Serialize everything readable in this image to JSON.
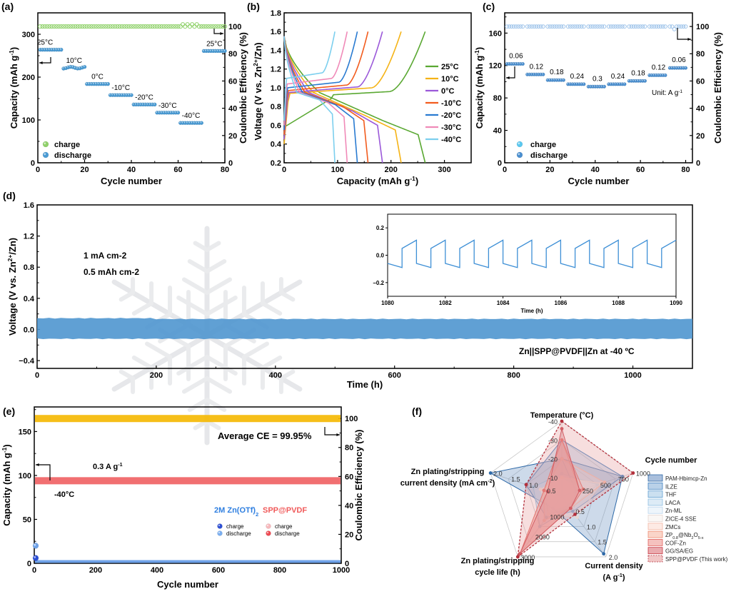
{
  "chart_data": [
    {
      "panel": "(a)",
      "type": "scatter",
      "xlabel": "Cycle number",
      "ylabel": "Capacity (mAh g-1)",
      "y2label": "Coulombic Efficiency (%)",
      "xlim": [
        0,
        80
      ],
      "ylim": [
        0,
        350
      ],
      "y2lim": [
        0,
        110
      ],
      "xticks": [
        0,
        20,
        40,
        60,
        80
      ],
      "yticks": [
        0,
        100,
        200,
        300
      ],
      "y2ticks": [
        0,
        20,
        40,
        60,
        80,
        100
      ],
      "legend": [
        "charge",
        "discharge"
      ],
      "legend_position": "bottom-left",
      "colors": {
        "charge": "#8fd16a",
        "discharge": "#4a9bd4"
      },
      "segments": [
        {
          "label": "25°C",
          "x": [
            1,
            10
          ],
          "capacity": 264
        },
        {
          "label": "10°C",
          "x": [
            11,
            20
          ],
          "capacity": 222
        },
        {
          "label": "0°C",
          "x": [
            21,
            30
          ],
          "capacity": 184
        },
        {
          "label": "-10°C",
          "x": [
            31,
            40
          ],
          "capacity": 158
        },
        {
          "label": "-20°C",
          "x": [
            41,
            50
          ],
          "capacity": 136
        },
        {
          "label": "-30°C",
          "x": [
            51,
            60
          ],
          "capacity": 117
        },
        {
          "label": "-40°C",
          "x": [
            61,
            70
          ],
          "capacity": 93
        },
        {
          "label": "25°C",
          "x": [
            71,
            80
          ],
          "capacity": 261
        }
      ],
      "ce_value": 100
    },
    {
      "panel": "(b)",
      "type": "line",
      "xlabel": "Capacity (mAh g-1)",
      "ylabel": "Voltage (V vs. Zn2+/Zn)",
      "xlim": [
        0,
        350
      ],
      "ylim": [
        0.2,
        1.8
      ],
      "xticks": [
        0,
        100,
        200,
        300
      ],
      "yticks": [
        0.2,
        0.4,
        0.6,
        0.8,
        1.0,
        1.2,
        1.4,
        1.6
      ],
      "legend_position": "right",
      "series": [
        {
          "name": "25°C",
          "color": "#5aa832",
          "max_capacity": 264,
          "charge_plateau": 0.93,
          "discharge_plateau": 0.55
        },
        {
          "name": "10°C",
          "color": "#f5b316",
          "max_capacity": 219,
          "charge_plateau": 0.97,
          "discharge_plateau": 0.6
        },
        {
          "name": "0°C",
          "color": "#9b59d9",
          "max_capacity": 184,
          "charge_plateau": 0.98,
          "discharge_plateau": 0.65
        },
        {
          "name": "-10°C",
          "color": "#f25c1e",
          "max_capacity": 157,
          "charge_plateau": 1.0,
          "discharge_plateau": 0.7
        },
        {
          "name": "-20°C",
          "color": "#2a7bd1",
          "max_capacity": 137,
          "charge_plateau": 1.03,
          "discharge_plateau": 0.72
        },
        {
          "name": "-30°C",
          "color": "#f08ab8",
          "max_capacity": 118,
          "charge_plateau": 1.07,
          "discharge_plateau": 0.74
        },
        {
          "name": "-40°C",
          "color": "#7ccfee",
          "max_capacity": 95,
          "charge_plateau": 1.13,
          "discharge_plateau": 0.77
        }
      ]
    },
    {
      "panel": "(c)",
      "type": "scatter",
      "xlabel": "Cycle number",
      "ylabel": "Capacity (mAh g-1)",
      "y2label": "Coulombic Efficiency (%)",
      "xlim": [
        0,
        83
      ],
      "ylim": [
        0,
        185
      ],
      "y2lim": [
        0,
        110
      ],
      "xticks": [
        0,
        20,
        40,
        60,
        80
      ],
      "yticks": [
        0,
        40,
        80,
        120,
        160
      ],
      "y2ticks": [
        0,
        20,
        40,
        60,
        80,
        100
      ],
      "legend": [
        "charge",
        "discharge"
      ],
      "legend_position": "bottom-left",
      "annotation": "Unit: A g-1",
      "colors": {
        "charge": "#5ac8f0",
        "discharge": "#4a8fd0"
      },
      "segments": [
        {
          "label": "0.06",
          "x": [
            1,
            9
          ],
          "capacity": 122
        },
        {
          "label": "0.12",
          "x": [
            10,
            18
          ],
          "capacity": 109
        },
        {
          "label": "0.18",
          "x": [
            19,
            27
          ],
          "capacity": 102
        },
        {
          "label": "0.24",
          "x": [
            28,
            36
          ],
          "capacity": 97
        },
        {
          "label": "0.3",
          "x": [
            37,
            45
          ],
          "capacity": 94
        },
        {
          "label": "0.24",
          "x": [
            46,
            54
          ],
          "capacity": 97
        },
        {
          "label": "0.18",
          "x": [
            55,
            63
          ],
          "capacity": 101
        },
        {
          "label": "0.12",
          "x": [
            64,
            72
          ],
          "capacity": 108
        },
        {
          "label": "0.06",
          "x": [
            73,
            81
          ],
          "capacity": 117
        }
      ],
      "ce_value": 100
    },
    {
      "panel": "(d)",
      "type": "line",
      "xlabel": "Time (h)",
      "ylabel": "Voltage (V vs. Zn2+/Zn)",
      "xlim": [
        0,
        1100
      ],
      "ylim": [
        -0.5,
        1.6
      ],
      "xticks": [
        0,
        200,
        400,
        600,
        800,
        1000
      ],
      "yticks": [
        -0.4,
        0.0,
        0.4,
        0.8,
        1.2,
        1.6
      ],
      "band": {
        "min": -0.12,
        "max": 0.14,
        "color": "#4f96cf"
      },
      "annotations": [
        "1 mA cm-2",
        "0.5 mAh cm-2",
        "Zn||SPP@PVDF||Zn at -40 ºC"
      ],
      "inset": {
        "xlabel": "Time (h)",
        "xlim": [
          1080,
          1090
        ],
        "ylim": [
          -0.3,
          0.3
        ],
        "xticks": [
          1080,
          1082,
          1084,
          1086,
          1088,
          1090
        ],
        "yticks": [
          -0.2,
          0.0,
          0.2
        ],
        "period_h": 1,
        "upper": [
          0.05,
          0.11
        ],
        "lower": [
          -0.06,
          -0.09
        ]
      }
    },
    {
      "panel": "(e)",
      "type": "scatter",
      "xlabel": "Cycle number",
      "ylabel": "Capacity (mAh g-1)",
      "y2label": "Coulombic Efficiency (%)",
      "xlim": [
        0,
        1000
      ],
      "ylim": [
        0,
        178
      ],
      "y2lim": [
        0,
        108
      ],
      "xticks": [
        0,
        200,
        400,
        600,
        800,
        1000
      ],
      "yticks": [
        0,
        50,
        100,
        150
      ],
      "y2ticks": [
        0,
        20,
        40,
        60,
        80,
        100
      ],
      "annotations": [
        "Average CE = 99.95%",
        "0.3 A g-1",
        "-40°C"
      ],
      "series": [
        {
          "name": "SPP@PVDF CE",
          "value": 100,
          "color": "#f5b800"
        },
        {
          "name": "SPP@PVDF discharge",
          "value": 94,
          "color": "#ef5f62"
        },
        {
          "name": "2M Zn(OTf)2 discharge",
          "value": 2,
          "color": "#6fa2e8",
          "initial": [
            20,
            6
          ]
        }
      ],
      "legend": {
        "groups": [
          {
            "title": "2M Zn(OTf)2",
            "color": "#2f7fe0",
            "items": [
              {
                "label": "charge",
                "color": "#2d4fd4"
              },
              {
                "label": "discharge",
                "color": "#7aaef0"
              }
            ]
          },
          {
            "title": "SPP@PVDF",
            "color": "#f05a5a",
            "items": [
              {
                "label": "charge",
                "color": "#f7b8bc"
              },
              {
                "label": "discharge",
                "color": "#ee4a52"
              }
            ]
          }
        ]
      }
    },
    {
      "panel": "(f)",
      "type": "radar",
      "axes": [
        {
          "name": "Temperature (°C)",
          "ticks": [
            "-40",
            "-30",
            "-20",
            "-10"
          ]
        },
        {
          "name": "Cycle number",
          "ticks": [
            "250",
            "500",
            "750",
            "1000"
          ]
        },
        {
          "name": "Current density (A g-1)",
          "ticks": [
            "0.5",
            "1.0",
            "1.5",
            "2.0"
          ]
        },
        {
          "name": "Zn plating/stripping cycle life (h)",
          "ticks": [
            "1000",
            "2000",
            "3000"
          ]
        },
        {
          "name": "Zn plating/stripping current density (mA cm-2)",
          "ticks": [
            "0.5",
            "1.0",
            "1.5",
            "2.0"
          ]
        }
      ],
      "series": [
        {
          "name": "PAM-Hbimcp-Zn",
          "fill": "#6f95c4",
          "stroke": "#2f6aa8",
          "values": [
            0.5,
            0.85,
            0.95,
            0.2,
            1.0
          ]
        },
        {
          "name": "ILZE",
          "fill": "#8ab3d8",
          "stroke": "#3f80bf",
          "values": [
            0.75,
            0.85,
            0.25,
            0.35,
            0.5
          ]
        },
        {
          "name": "THF",
          "fill": "#a9cbe6",
          "stroke": "#62a0d2",
          "values": [
            0.5,
            0.2,
            0.2,
            0.3,
            0.25
          ]
        },
        {
          "name": "LACA",
          "fill": "#c6def0",
          "stroke": "#8ebfe1",
          "values": [
            0.3,
            0.5,
            0.2,
            0.5,
            0.4
          ]
        },
        {
          "name": "Zn-ML",
          "fill": "#e2eef8",
          "stroke": "#bcd6ec",
          "values": [
            0.25,
            0.3,
            0.15,
            0.25,
            0.3
          ]
        },
        {
          "name": "ZICE-4 SSE",
          "fill": "#f7f1ee",
          "stroke": "#e6d8d2",
          "values": [
            0.25,
            0.55,
            0.35,
            0.3,
            0.3
          ]
        },
        {
          "name": "ZMCs",
          "fill": "#fbdcd2",
          "stroke": "#f3b7a5",
          "values": [
            0.5,
            0.6,
            0.2,
            0.4,
            0.25
          ]
        },
        {
          "name": "ZP0.8@Nb2O5-x",
          "fill": "#f6b9a5",
          "stroke": "#ee8d74",
          "values": [
            0.75,
            0.25,
            0.2,
            0.95,
            0.25
          ]
        },
        {
          "name": "COF-Zn",
          "fill": "#ee9892",
          "stroke": "#e2645f",
          "values": [
            0.75,
            0.3,
            0.2,
            0.95,
            0.25
          ]
        },
        {
          "name": "GG/SA/EG",
          "fill": "#dc7178",
          "stroke": "#c73a45",
          "values": [
            0.9,
            0.25,
            0.2,
            0.95,
            0.2
          ]
        },
        {
          "name": "SPP@PVDF (This work)",
          "fill": "#e8a0a0",
          "stroke": "#b3303c",
          "dashed": true,
          "values": [
            1.0,
            1.0,
            0.3,
            1.0,
            0.5
          ]
        }
      ]
    }
  ],
  "labels": {
    "a": "(a)",
    "b": "(b)",
    "c": "(c)",
    "d": "(d)",
    "e": "(e)",
    "f": "(f)"
  }
}
